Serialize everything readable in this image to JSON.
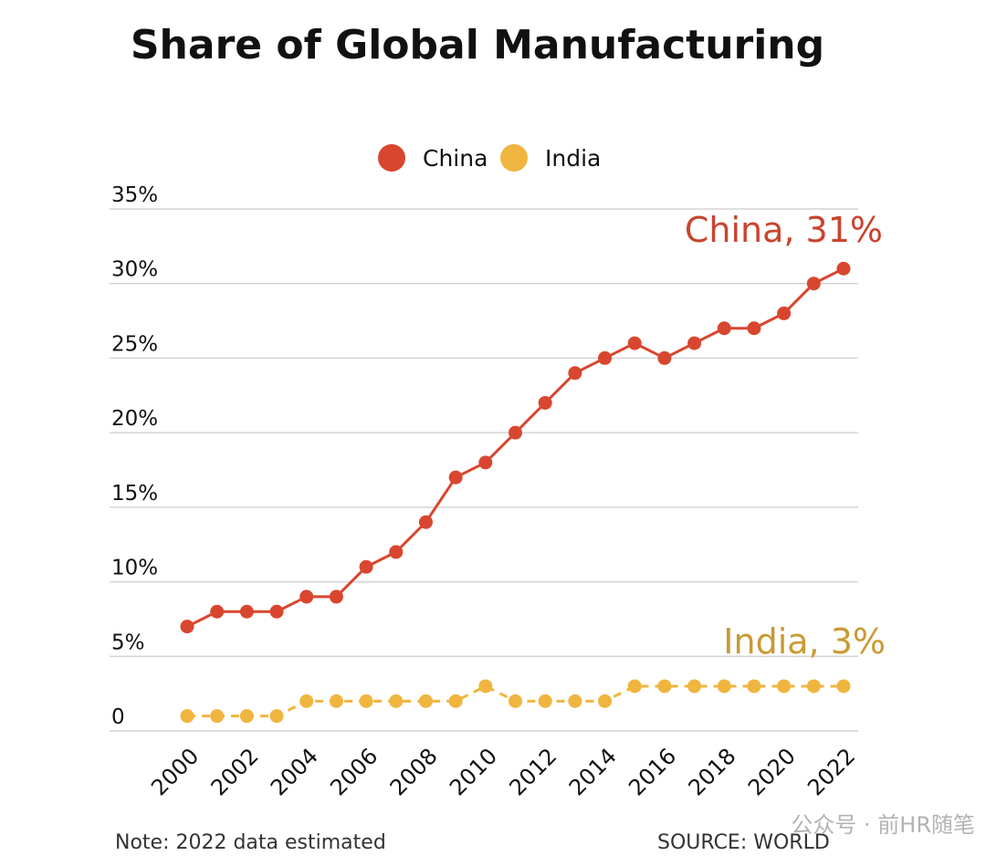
{
  "chart_data": {
    "type": "line",
    "title": "Share of Global Manufacturing",
    "xlabel": "",
    "ylabel": "",
    "x": [
      "2000",
      "2001",
      "2002",
      "2003",
      "2004",
      "2005",
      "2006",
      "2007",
      "2008",
      "2009",
      "2010",
      "2011",
      "2012",
      "2013",
      "2014",
      "2015",
      "2016",
      "2017",
      "2018",
      "2019",
      "2020",
      "2021",
      "2022"
    ],
    "x_tick_labels": [
      "2000",
      "2002",
      "2004",
      "2006",
      "2008",
      "2010",
      "2012",
      "2014",
      "2016",
      "2018",
      "2020",
      "2022"
    ],
    "y_tick_labels": [
      "0",
      "5%",
      "10%",
      "15%",
      "20%",
      "25%",
      "30%",
      "35%"
    ],
    "ylim": [
      0,
      35
    ],
    "grid": "horizontal",
    "legend_placement": "top-center",
    "series": [
      {
        "name": "China",
        "color": "#d9462f",
        "line_style": "solid",
        "end_label": "China, 31%",
        "values": [
          7,
          8,
          8,
          8,
          9,
          9,
          11,
          12,
          14,
          17,
          18,
          20,
          22,
          24,
          25,
          26,
          25,
          26,
          27,
          27,
          28,
          30,
          31
        ]
      },
      {
        "name": "India",
        "color": "#f0b53f",
        "line_style": "dashed",
        "end_label": "India, 3%",
        "values": [
          1,
          1,
          1,
          1,
          2,
          2,
          2,
          2,
          2,
          2,
          3,
          2,
          2,
          2,
          2,
          3,
          3,
          3,
          3,
          3,
          3,
          3,
          3
        ]
      }
    ],
    "note": "Note: 2022 data estimated",
    "source": "SOURCE: WORLD",
    "watermark": "公众号 · 前HR随笔"
  },
  "colors": {
    "text": "#111111",
    "grid": "#d4d4d4",
    "china_label": "#c9442d",
    "india_label": "#c99a33"
  }
}
